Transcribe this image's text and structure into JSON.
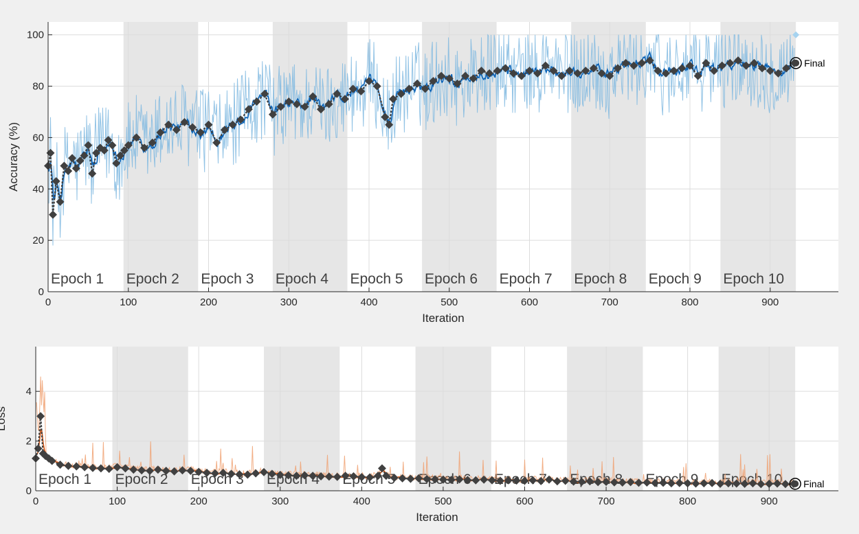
{
  "chart_data": [
    {
      "type": "line",
      "ylabel": "Accuracy (%)",
      "xlabel": "Iteration",
      "xlim": [
        0,
        985
      ],
      "ylim": [
        0,
        105
      ],
      "xticks": [
        "0",
        "100",
        "200",
        "300",
        "400",
        "500",
        "600",
        "700",
        "800",
        "900"
      ],
      "yticks": [
        "0",
        "20",
        "40",
        "60",
        "80",
        "100"
      ],
      "grid": true,
      "epoch_shading": [
        {
          "label": "Epoch 1",
          "start": 0,
          "end": 94
        },
        {
          "label": "Epoch 2",
          "start": 94,
          "end": 187
        },
        {
          "label": "Epoch 3",
          "start": 187,
          "end": 280
        },
        {
          "label": "Epoch 4",
          "start": 280,
          "end": 373
        },
        {
          "label": "Epoch 5",
          "start": 373,
          "end": 466
        },
        {
          "label": "Epoch 6",
          "start": 466,
          "end": 559
        },
        {
          "label": "Epoch 7",
          "start": 559,
          "end": 652
        },
        {
          "label": "Epoch 8",
          "start": 652,
          "end": 745
        },
        {
          "label": "Epoch 9",
          "start": 745,
          "end": 838
        },
        {
          "label": "Epoch 10",
          "start": 838,
          "end": 932
        }
      ],
      "series": [
        {
          "role": "validation",
          "x": [
            0,
            3,
            6,
            10,
            15,
            20,
            25,
            30,
            35,
            40,
            45,
            50,
            55,
            60,
            65,
            70,
            75,
            80,
            85,
            90,
            95,
            100,
            110,
            120,
            130,
            140,
            150,
            160,
            170,
            180,
            190,
            200,
            210,
            220,
            230,
            240,
            250,
            260,
            270,
            280,
            290,
            300,
            310,
            320,
            330,
            340,
            350,
            360,
            370,
            380,
            390,
            400,
            410,
            420,
            425,
            430,
            440,
            450,
            460,
            470,
            480,
            490,
            500,
            510,
            520,
            530,
            540,
            550,
            560,
            570,
            580,
            590,
            600,
            610,
            620,
            630,
            640,
            650,
            660,
            670,
            680,
            690,
            700,
            710,
            720,
            730,
            740,
            750,
            760,
            770,
            780,
            790,
            800,
            810,
            820,
            830,
            840,
            850,
            860,
            870,
            880,
            890,
            900,
            910,
            920,
            930
          ],
          "values": [
            49,
            54,
            30,
            43,
            35,
            49,
            47,
            52,
            48,
            51,
            53,
            57,
            46,
            54,
            56,
            55,
            59,
            57,
            50,
            53,
            55,
            57,
            60,
            56,
            58,
            62,
            65,
            63,
            66,
            64,
            62,
            65,
            58,
            63,
            65,
            67,
            71,
            74,
            77,
            69,
            72,
            74,
            73,
            72,
            76,
            71,
            73,
            77,
            75,
            79,
            78,
            82,
            80,
            68,
            65,
            75,
            77,
            79,
            81,
            79,
            82,
            84,
            83,
            81,
            84,
            83,
            86,
            85,
            86,
            87,
            85,
            84,
            86,
            85,
            88,
            86,
            84,
            86,
            85,
            86,
            87,
            85,
            84,
            87,
            89,
            88,
            89,
            90,
            86,
            85,
            86,
            87,
            88,
            84,
            89,
            86,
            88,
            89,
            90,
            88,
            89,
            87,
            86,
            85,
            87,
            89
          ]
        }
      ],
      "final_marker": {
        "x": 932,
        "y": 89,
        "label": "Final"
      },
      "final_point": {
        "x": 932,
        "y": 100
      }
    },
    {
      "type": "line",
      "ylabel": "Loss",
      "xlabel": "Iteration",
      "xlim": [
        0,
        985
      ],
      "ylim": [
        0,
        5.8
      ],
      "xticks": [
        "0",
        "100",
        "200",
        "300",
        "400",
        "500",
        "600",
        "700",
        "800",
        "900"
      ],
      "yticks": [
        "0",
        "2",
        "4"
      ],
      "grid": true,
      "epoch_shading": [
        {
          "label": "Epoch 1",
          "start": 0,
          "end": 94
        },
        {
          "label": "Epoch 2",
          "start": 94,
          "end": 187
        },
        {
          "label": "Epoch 3",
          "start": 187,
          "end": 280
        },
        {
          "label": "Epoch 4",
          "start": 280,
          "end": 373
        },
        {
          "label": "Epoch 5",
          "start": 373,
          "end": 466
        },
        {
          "label": "Epoch 6",
          "start": 466,
          "end": 559
        },
        {
          "label": "Epoch 7",
          "start": 559,
          "end": 652
        },
        {
          "label": "Epoch 8",
          "start": 652,
          "end": 745
        },
        {
          "label": "Epoch 9",
          "start": 745,
          "end": 838
        },
        {
          "label": "Epoch 10",
          "start": 838,
          "end": 932
        }
      ],
      "series": [
        {
          "role": "validation",
          "x": [
            0,
            3,
            6,
            9,
            12,
            16,
            20,
            30,
            40,
            50,
            60,
            70,
            80,
            90,
            100,
            110,
            120,
            130,
            140,
            150,
            160,
            170,
            180,
            190,
            200,
            210,
            220,
            230,
            240,
            250,
            260,
            270,
            280,
            290,
            300,
            310,
            320,
            330,
            340,
            350,
            360,
            370,
            380,
            390,
            400,
            410,
            420,
            425,
            430,
            440,
            450,
            460,
            470,
            480,
            490,
            500,
            510,
            520,
            530,
            540,
            550,
            560,
            570,
            580,
            590,
            600,
            610,
            620,
            630,
            640,
            650,
            660,
            670,
            680,
            690,
            700,
            710,
            720,
            730,
            740,
            750,
            760,
            770,
            780,
            790,
            800,
            810,
            820,
            830,
            840,
            850,
            860,
            870,
            880,
            890,
            900,
            910,
            920,
            930
          ],
          "values": [
            1.3,
            1.7,
            3.0,
            1.5,
            1.4,
            1.3,
            1.2,
            1.05,
            1.0,
            0.98,
            0.95,
            0.92,
            0.9,
            0.88,
            0.95,
            0.9,
            0.85,
            0.82,
            0.8,
            0.85,
            0.8,
            0.78,
            0.82,
            0.8,
            0.76,
            0.72,
            0.7,
            0.72,
            0.68,
            0.66,
            0.65,
            0.7,
            0.75,
            0.68,
            0.64,
            0.62,
            0.6,
            0.62,
            0.6,
            0.58,
            0.57,
            0.56,
            0.6,
            0.58,
            0.55,
            0.54,
            0.6,
            0.9,
            0.6,
            0.52,
            0.5,
            0.48,
            0.5,
            0.47,
            0.46,
            0.45,
            0.44,
            0.46,
            0.43,
            0.42,
            0.45,
            0.42,
            0.4,
            0.42,
            0.41,
            0.4,
            0.42,
            0.39,
            0.45,
            0.38,
            0.4,
            0.37,
            0.36,
            0.38,
            0.35,
            0.36,
            0.34,
            0.33,
            0.35,
            0.32,
            0.33,
            0.31,
            0.32,
            0.3,
            0.31,
            0.3,
            0.29,
            0.3,
            0.31,
            0.28,
            0.3,
            0.29,
            0.28,
            0.3,
            0.27,
            0.28,
            0.29,
            0.27,
            0.28
          ]
        }
      ],
      "final_marker": {
        "x": 932,
        "y": 0.28,
        "label": "Final"
      }
    }
  ],
  "colors": {
    "background": "#f0f0f0",
    "plot_bg": "#ffffff",
    "shade": "#e6e6e6",
    "grid": "#dcdcdc",
    "train_raw_acc": "#7fb8e0",
    "train_smooth_acc": "#0a62b6",
    "train_raw_loss": "#f0a070",
    "train_smooth_loss": "#d9550f",
    "validation": "#404040",
    "final_point": "#a6d3f0"
  }
}
